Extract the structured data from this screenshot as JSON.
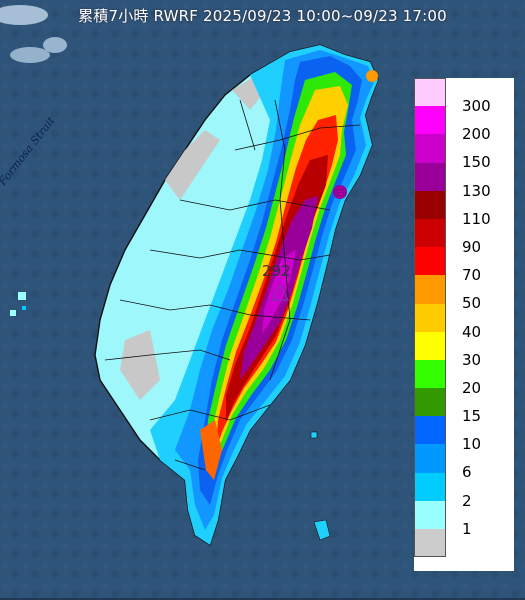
{
  "title": "累積7小時 RWRF 2025/09/23 10:00~09/23 17:00",
  "strait_label": "Formosa Strait",
  "max_value": "292",
  "colors": {
    "sea": "#2a4d72",
    "border": "#111111"
  },
  "legend": [
    {
      "color": "#ffccff",
      "label": "300"
    },
    {
      "color": "#ff00ff",
      "label": "200"
    },
    {
      "color": "#cc00cc",
      "label": "150"
    },
    {
      "color": "#990099",
      "label": "130"
    },
    {
      "color": "#990000",
      "label": "110"
    },
    {
      "color": "#cc0000",
      "label": "90"
    },
    {
      "color": "#ff0000",
      "label": "70"
    },
    {
      "color": "#ff9900",
      "label": "50"
    },
    {
      "color": "#ffcc00",
      "label": "40"
    },
    {
      "color": "#ffff00",
      "label": "30"
    },
    {
      "color": "#33ff00",
      "label": "20"
    },
    {
      "color": "#339900",
      "label": "15"
    },
    {
      "color": "#0066ff",
      "label": "10"
    },
    {
      "color": "#0099ff",
      "label": "6"
    },
    {
      "color": "#00ccff",
      "label": "2"
    },
    {
      "color": "#99ffff",
      "label": "1"
    },
    {
      "color": "#cccccc",
      "label": ""
    }
  ]
}
